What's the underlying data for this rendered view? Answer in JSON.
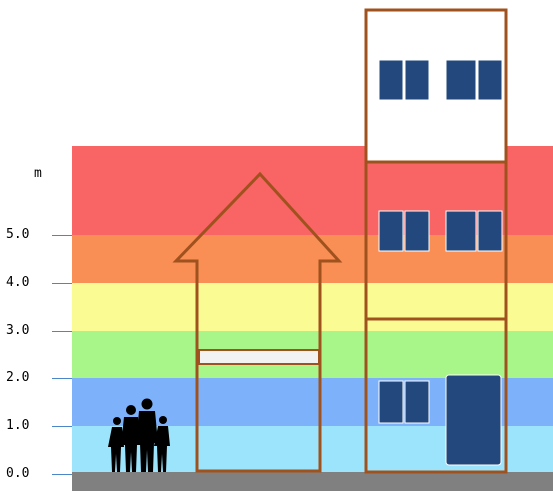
{
  "diagram": {
    "unit": "m",
    "axis_ticks": [
      {
        "value": 0.0,
        "label": "0.0"
      },
      {
        "value": 1.0,
        "label": "1.0"
      },
      {
        "value": 2.0,
        "label": "2.0"
      },
      {
        "value": 3.0,
        "label": "3.0"
      },
      {
        "value": 4.0,
        "label": "4.0"
      },
      {
        "value": 5.0,
        "label": "5.0"
      }
    ],
    "hazard_bands": [
      {
        "from": 0.0,
        "to": 1.0,
        "color": "#9ce4fb"
      },
      {
        "from": 1.0,
        "to": 2.0,
        "color": "#7db2fb"
      },
      {
        "from": 2.0,
        "to": 3.0,
        "color": "#a8f58a"
      },
      {
        "from": 3.0,
        "to": 4.0,
        "color": "#fbfb93"
      },
      {
        "from": 4.0,
        "to": 5.0,
        "color": "#f98f55"
      },
      {
        "from": 5.0,
        "to": 7.0,
        "color": "#f96465"
      }
    ],
    "colors": {
      "ground": "#808080",
      "outline": "#a0521e",
      "window": "#23487e",
      "tick": "#4a86c8",
      "silhouette": "#000000"
    }
  }
}
